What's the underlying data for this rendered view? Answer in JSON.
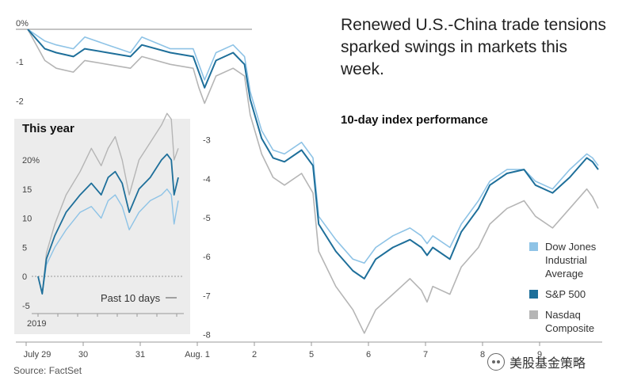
{
  "chart_data": [
    {
      "type": "line",
      "title": "Renewed U.S.-China trade tensions sparked swings in markets this week.",
      "subtitle": "10-day index performance",
      "source": "Source: FactSet",
      "x_tick_labels": [
        "July 29",
        "30",
        "31",
        "Aug. 1",
        "2",
        "5",
        "6",
        "7",
        "8",
        "9"
      ],
      "y_tick_labels": [
        "0%",
        "-1",
        "-2",
        "-3",
        "-4",
        "-5",
        "-6",
        "-7",
        "-8"
      ],
      "ylim": [
        -8.1,
        0.5
      ],
      "grid": false,
      "legend_position": "bottom-right",
      "series": [
        {
          "name": "Dow Jones Industrial Average",
          "color": "#8ec3e6",
          "points": [
            [
              0,
              0
            ],
            [
              0.3,
              -0.3
            ],
            [
              0.5,
              -0.4
            ],
            [
              0.8,
              -0.5
            ],
            [
              1.0,
              -0.2
            ],
            [
              1.4,
              -0.4
            ],
            [
              1.8,
              -0.6
            ],
            [
              2.0,
              -0.2
            ],
            [
              2.5,
              -0.5
            ],
            [
              2.9,
              -0.5
            ],
            [
              3.0,
              -0.9
            ],
            [
              3.1,
              -1.3
            ],
            [
              3.3,
              -0.6
            ],
            [
              3.6,
              -0.4
            ],
            [
              3.8,
              -0.7
            ],
            [
              3.9,
              -1.6
            ],
            [
              4.1,
              -2.6
            ],
            [
              4.3,
              -3.1
            ],
            [
              4.5,
              -3.2
            ],
            [
              4.8,
              -2.9
            ],
            [
              5.0,
              -3.3
            ],
            [
              5.1,
              -4.8
            ],
            [
              5.4,
              -5.4
            ],
            [
              5.7,
              -5.9
            ],
            [
              5.9,
              -6.0
            ],
            [
              6.1,
              -5.6
            ],
            [
              6.4,
              -5.3
            ],
            [
              6.7,
              -5.1
            ],
            [
              6.9,
              -5.3
            ],
            [
              7.0,
              -5.5
            ],
            [
              7.1,
              -5.3
            ],
            [
              7.4,
              -5.6
            ],
            [
              7.6,
              -5.0
            ],
            [
              7.9,
              -4.4
            ],
            [
              8.1,
              -3.9
            ],
            [
              8.4,
              -3.6
            ],
            [
              8.7,
              -3.6
            ],
            [
              8.9,
              -3.9
            ],
            [
              9.2,
              -4.1
            ],
            [
              9.5,
              -3.6
            ],
            [
              9.8,
              -3.2
            ],
            [
              9.9,
              -3.3
            ],
            [
              10.0,
              -3.5
            ]
          ]
        },
        {
          "name": "S&P 500",
          "color": "#1e6f9a",
          "points": [
            [
              0,
              0
            ],
            [
              0.3,
              -0.5
            ],
            [
              0.5,
              -0.6
            ],
            [
              0.8,
              -0.7
            ],
            [
              1.0,
              -0.5
            ],
            [
              1.4,
              -0.6
            ],
            [
              1.8,
              -0.7
            ],
            [
              2.0,
              -0.4
            ],
            [
              2.5,
              -0.6
            ],
            [
              2.9,
              -0.7
            ],
            [
              3.0,
              -1.1
            ],
            [
              3.1,
              -1.5
            ],
            [
              3.3,
              -0.8
            ],
            [
              3.6,
              -0.6
            ],
            [
              3.8,
              -0.9
            ],
            [
              3.9,
              -1.8
            ],
            [
              4.1,
              -2.8
            ],
            [
              4.3,
              -3.3
            ],
            [
              4.5,
              -3.4
            ],
            [
              4.8,
              -3.1
            ],
            [
              5.0,
              -3.5
            ],
            [
              5.1,
              -5.0
            ],
            [
              5.4,
              -5.7
            ],
            [
              5.7,
              -6.2
            ],
            [
              5.9,
              -6.4
            ],
            [
              6.1,
              -5.9
            ],
            [
              6.4,
              -5.6
            ],
            [
              6.7,
              -5.4
            ],
            [
              6.9,
              -5.6
            ],
            [
              7.0,
              -5.8
            ],
            [
              7.1,
              -5.6
            ],
            [
              7.4,
              -5.9
            ],
            [
              7.6,
              -5.2
            ],
            [
              7.9,
              -4.6
            ],
            [
              8.1,
              -4.0
            ],
            [
              8.4,
              -3.7
            ],
            [
              8.7,
              -3.6
            ],
            [
              8.9,
              -4.0
            ],
            [
              9.2,
              -4.2
            ],
            [
              9.5,
              -3.8
            ],
            [
              9.8,
              -3.3
            ],
            [
              9.9,
              -3.4
            ],
            [
              10.0,
              -3.6
            ]
          ]
        },
        {
          "name": "Nasdaq Composite",
          "color": "#b5b5b5",
          "points": [
            [
              0,
              0
            ],
            [
              0.3,
              -0.8
            ],
            [
              0.5,
              -1.0
            ],
            [
              0.8,
              -1.1
            ],
            [
              1.0,
              -0.8
            ],
            [
              1.4,
              -0.9
            ],
            [
              1.8,
              -1.0
            ],
            [
              2.0,
              -0.7
            ],
            [
              2.5,
              -0.9
            ],
            [
              2.9,
              -1.0
            ],
            [
              3.0,
              -1.5
            ],
            [
              3.1,
              -1.9
            ],
            [
              3.3,
              -1.2
            ],
            [
              3.6,
              -1.0
            ],
            [
              3.8,
              -1.2
            ],
            [
              3.9,
              -2.2
            ],
            [
              4.1,
              -3.2
            ],
            [
              4.3,
              -3.8
            ],
            [
              4.5,
              -4.0
            ],
            [
              4.8,
              -3.7
            ],
            [
              5.0,
              -4.2
            ],
            [
              5.1,
              -5.7
            ],
            [
              5.4,
              -6.6
            ],
            [
              5.7,
              -7.2
            ],
            [
              5.9,
              -7.8
            ],
            [
              6.1,
              -7.2
            ],
            [
              6.4,
              -6.8
            ],
            [
              6.7,
              -6.4
            ],
            [
              6.9,
              -6.7
            ],
            [
              7.0,
              -7.0
            ],
            [
              7.1,
              -6.6
            ],
            [
              7.4,
              -6.8
            ],
            [
              7.6,
              -6.1
            ],
            [
              7.9,
              -5.6
            ],
            [
              8.1,
              -5.0
            ],
            [
              8.4,
              -4.6
            ],
            [
              8.7,
              -4.4
            ],
            [
              8.9,
              -4.8
            ],
            [
              9.2,
              -5.1
            ],
            [
              9.5,
              -4.6
            ],
            [
              9.8,
              -4.1
            ],
            [
              9.9,
              -4.3
            ],
            [
              10.0,
              -4.6
            ]
          ]
        }
      ]
    },
    {
      "type": "line",
      "title": "This year",
      "x_tick_labels": [
        "2019"
      ],
      "y_tick_labels": [
        "20%",
        "15",
        "10",
        "5",
        "0",
        "-5"
      ],
      "ylim": [
        -7,
        30
      ],
      "annotation": "Past 10 days",
      "series": [
        {
          "name": "Dow Jones Industrial Average",
          "color": "#8ec3e6",
          "points": [
            [
              0,
              0
            ],
            [
              0.03,
              -3
            ],
            [
              0.06,
              2
            ],
            [
              0.12,
              5
            ],
            [
              0.2,
              8
            ],
            [
              0.3,
              11
            ],
            [
              0.38,
              12
            ],
            [
              0.45,
              10
            ],
            [
              0.5,
              13
            ],
            [
              0.55,
              14
            ],
            [
              0.6,
              12
            ],
            [
              0.65,
              8
            ],
            [
              0.72,
              11
            ],
            [
              0.8,
              13
            ],
            [
              0.88,
              14
            ],
            [
              0.92,
              15
            ],
            [
              0.95,
              14
            ],
            [
              0.97,
              9
            ],
            [
              1.0,
              13
            ]
          ]
        },
        {
          "name": "S&P 500",
          "color": "#1e6f9a",
          "points": [
            [
              0,
              0
            ],
            [
              0.03,
              -3
            ],
            [
              0.06,
              3
            ],
            [
              0.12,
              7
            ],
            [
              0.2,
              11
            ],
            [
              0.3,
              14
            ],
            [
              0.38,
              16
            ],
            [
              0.45,
              14
            ],
            [
              0.5,
              17
            ],
            [
              0.55,
              18
            ],
            [
              0.6,
              16
            ],
            [
              0.65,
              11
            ],
            [
              0.72,
              15
            ],
            [
              0.8,
              17
            ],
            [
              0.88,
              20
            ],
            [
              0.92,
              21
            ],
            [
              0.95,
              20
            ],
            [
              0.97,
              14
            ],
            [
              1.0,
              17
            ]
          ]
        },
        {
          "name": "Nasdaq Composite",
          "color": "#b5b5b5",
          "points": [
            [
              0,
              0
            ],
            [
              0.03,
              -3
            ],
            [
              0.06,
              4
            ],
            [
              0.12,
              9
            ],
            [
              0.2,
              14
            ],
            [
              0.3,
              18
            ],
            [
              0.38,
              22
            ],
            [
              0.45,
              19
            ],
            [
              0.5,
              22
            ],
            [
              0.55,
              24
            ],
            [
              0.6,
              20
            ],
            [
              0.65,
              14
            ],
            [
              0.72,
              20
            ],
            [
              0.8,
              23
            ],
            [
              0.88,
              26
            ],
            [
              0.92,
              28
            ],
            [
              0.95,
              27
            ],
            [
              0.97,
              20
            ],
            [
              1.0,
              22
            ]
          ]
        }
      ]
    }
  ],
  "legend": [
    {
      "label": "Dow Jones Industrial Average",
      "color": "#8ec3e6"
    },
    {
      "label": "S&P 500",
      "color": "#1e6f9a"
    },
    {
      "label": "Nasdaq Composite",
      "color": "#b5b5b5"
    }
  ],
  "watermark": {
    "text": "美股基金策略",
    "icon": "wechat-icon"
  }
}
